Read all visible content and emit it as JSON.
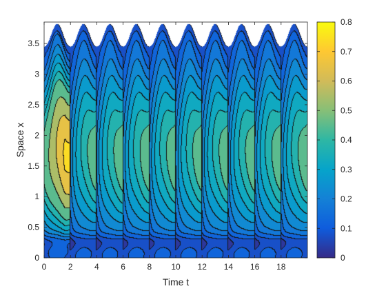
{
  "chart_data": {
    "type": "contour",
    "title": "",
    "xlabel": "Time t",
    "ylabel": "Space x",
    "xlim": [
      0,
      20
    ],
    "ylim": [
      0,
      3.85
    ],
    "x_ticks": [
      0,
      2,
      4,
      6,
      8,
      10,
      12,
      14,
      16,
      18
    ],
    "y_ticks": [
      0,
      0.5,
      1,
      1.5,
      2,
      2.5,
      3,
      3.5
    ],
    "colorbar": {
      "range": [
        0,
        0.8
      ],
      "ticks": [
        0,
        0.1,
        0.2,
        0.3,
        0.4,
        0.5,
        0.6,
        0.7,
        0.8
      ],
      "colormap": "parula",
      "colors": [
        "#352a87",
        "#0f5cdd",
        "#1481d6",
        "#06a4ca",
        "#2eb7a4",
        "#87bf77",
        "#d1bb59",
        "#fec832",
        "#f9fb0e"
      ]
    },
    "contour_levels": [
      0.05,
      0.1,
      0.15,
      0.2,
      0.25,
      0.3,
      0.35,
      0.4,
      0.5,
      0.6,
      0.7
    ],
    "domain_period_t": 2,
    "top_boundary": {
      "base": 3.45,
      "amplitude": 0.37,
      "shape": "peaks near each odd t"
    },
    "peak_value_first_cycle": 0.72,
    "peak_value_later_cycles": 0.46,
    "grid": false,
    "legend": "colorbar-right"
  }
}
